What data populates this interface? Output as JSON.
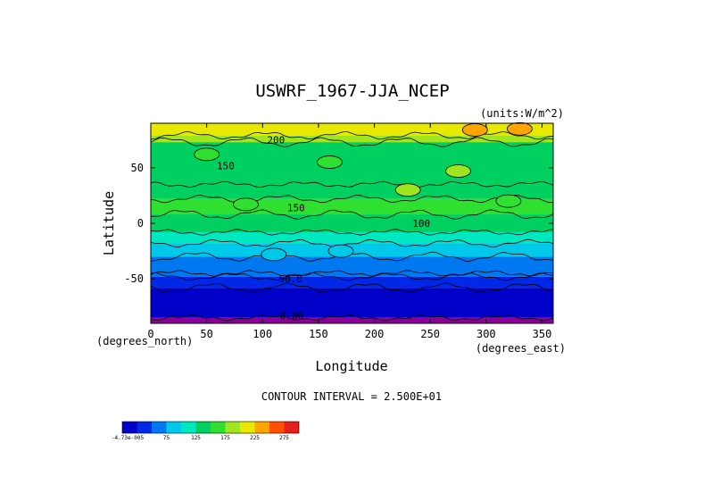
{
  "chart_data": {
    "type": "heatmap",
    "title": "USWRF_1967-JJA_NCEP",
    "units_label": "(units:W/m^2)",
    "xlabel": "Longitude",
    "ylabel": "Latitude",
    "x_units": "(degrees_east)",
    "y_units": "(degrees_north)",
    "xlim": [
      0,
      360
    ],
    "ylim": [
      -90,
      90
    ],
    "x_ticks": [
      0,
      50,
      100,
      150,
      200,
      250,
      300,
      350
    ],
    "y_ticks": [
      50,
      0,
      -50
    ],
    "x_tick_labels": [
      "0",
      "50",
      "100",
      "150",
      "200",
      "250",
      "300",
      "350"
    ],
    "y_tick_labels": [
      "50",
      "0",
      "-50"
    ],
    "contour_interval_text": "CONTOUR INTERVAL = 2.500E+01",
    "contour_labels": [
      {
        "text": "200",
        "lon": 112,
        "lat": 75
      },
      {
        "text": "150",
        "lon": 67,
        "lat": 52
      },
      {
        "text": "150",
        "lon": 130,
        "lat": 14
      },
      {
        "text": "100",
        "lon": 242,
        "lat": 0
      },
      {
        "text": "50.0",
        "lon": 125,
        "lat": -50
      },
      {
        "text": "0.00",
        "lon": 126,
        "lat": -83
      }
    ],
    "colorbar": {
      "tick_labels": [
        "-4.73e-005",
        "75",
        "125",
        "175",
        "225",
        "275"
      ],
      "colors": [
        "#0000c8",
        "#0028e6",
        "#0078f0",
        "#00c8e8",
        "#00e8c0",
        "#00d060",
        "#30e030",
        "#a0e620",
        "#e8e800",
        "#ffa500",
        "#ff5000",
        "#e61e1e"
      ]
    },
    "bands": [
      {
        "lat_from": 90,
        "lat_to": 79,
        "value": 212
      },
      {
        "lat_from": 79,
        "lat_to": 73,
        "value": 190
      },
      {
        "lat_from": 73,
        "lat_to": 35,
        "value": 140
      },
      {
        "lat_from": 35,
        "lat_to": 22,
        "value": 125
      },
      {
        "lat_from": 22,
        "lat_to": 8,
        "value": 150
      },
      {
        "lat_from": 8,
        "lat_to": -8,
        "value": 130
      },
      {
        "lat_from": -8,
        "lat_to": -18,
        "value": 100
      },
      {
        "lat_from": -18,
        "lat_to": -30,
        "value": 80
      },
      {
        "lat_from": -30,
        "lat_to": -45,
        "value": 70
      },
      {
        "lat_from": -45,
        "lat_to": -48,
        "value": 60
      },
      {
        "lat_from": -48,
        "lat_to": -58,
        "value": 40
      },
      {
        "lat_from": -58,
        "lat_to": -85,
        "value": 15
      },
      {
        "lat_from": -85,
        "lat_to": -90,
        "value": -5
      }
    ],
    "anomalies": [
      {
        "lon": 230,
        "lat": 30,
        "value": 175
      },
      {
        "lon": 275,
        "lat": 47,
        "value": 175
      },
      {
        "lon": 85,
        "lat": 17,
        "value": 165
      },
      {
        "lon": 320,
        "lat": 20,
        "value": 160
      },
      {
        "lon": 50,
        "lat": 62,
        "value": 165
      },
      {
        "lon": 160,
        "lat": 55,
        "value": 155
      },
      {
        "lon": 330,
        "lat": 85,
        "value": 235
      },
      {
        "lon": 290,
        "lat": 84,
        "value": 235
      },
      {
        "lon": 110,
        "lat": -28,
        "value": 95
      },
      {
        "lon": 170,
        "lat": -25,
        "value": 95
      }
    ]
  }
}
